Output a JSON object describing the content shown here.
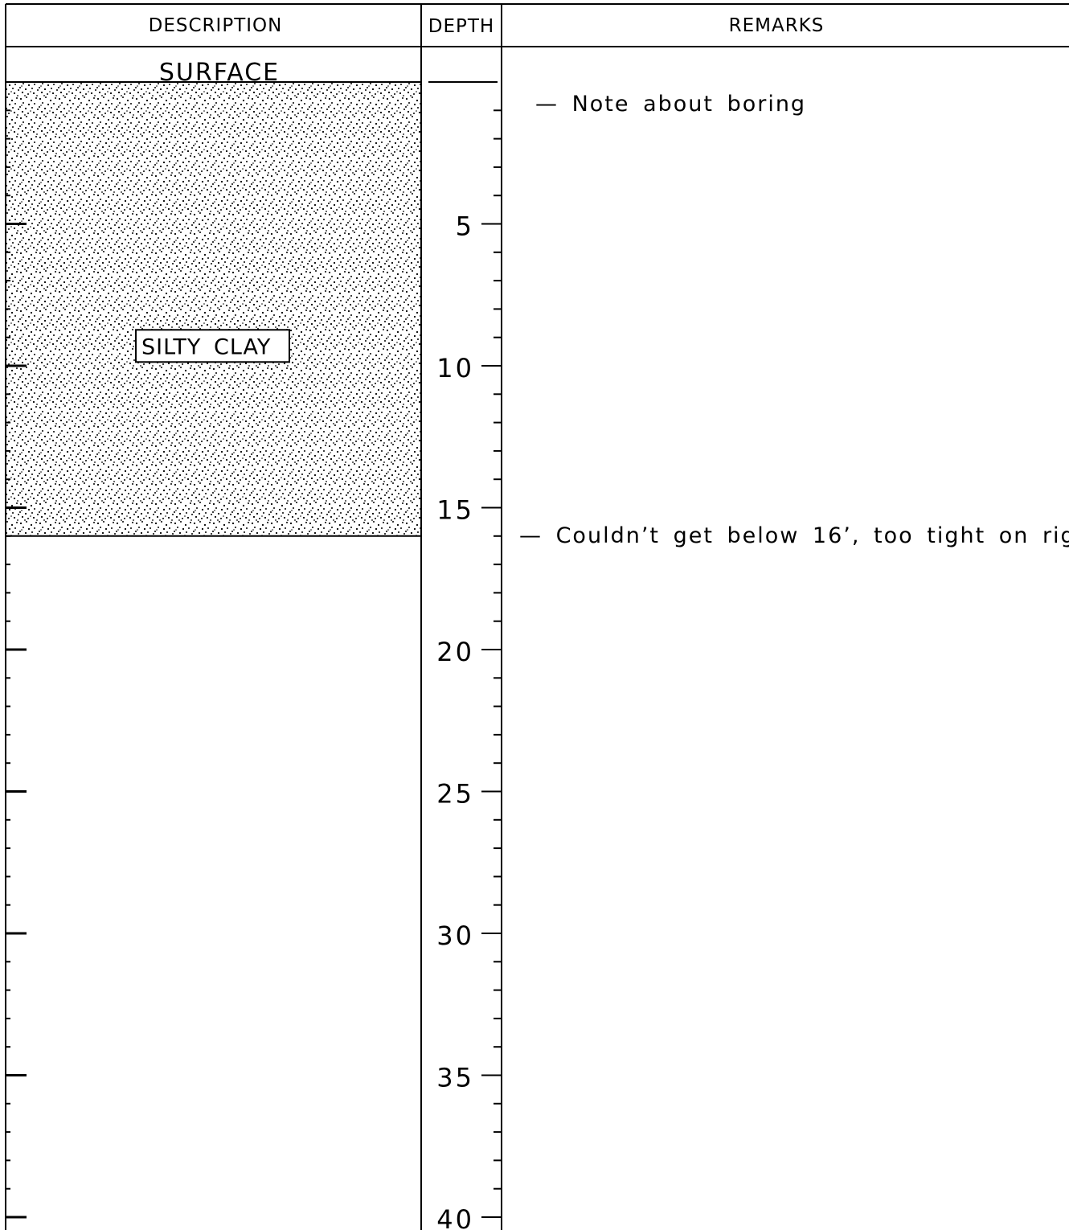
{
  "headers": {
    "description": "DESCRIPTION",
    "depth": "DEPTH",
    "remarks": "REMARKS"
  },
  "surface_label": "SURFACE",
  "layers": [
    {
      "label": "SILTY CLAY",
      "top_depth": 0,
      "bottom_depth": 16,
      "pattern": "stipple"
    }
  ],
  "depth_scale": {
    "min": 0,
    "max": 40,
    "major_step": 5,
    "minor_step": 1,
    "labels": [
      "5",
      "10",
      "15",
      "20",
      "25",
      "30",
      "35",
      "40"
    ]
  },
  "remarks": [
    {
      "depth": 0.8,
      "text": "— Note about boring"
    },
    {
      "depth": 16,
      "text": "— Couldn’t get below 16’, too tight on rig"
    }
  ]
}
